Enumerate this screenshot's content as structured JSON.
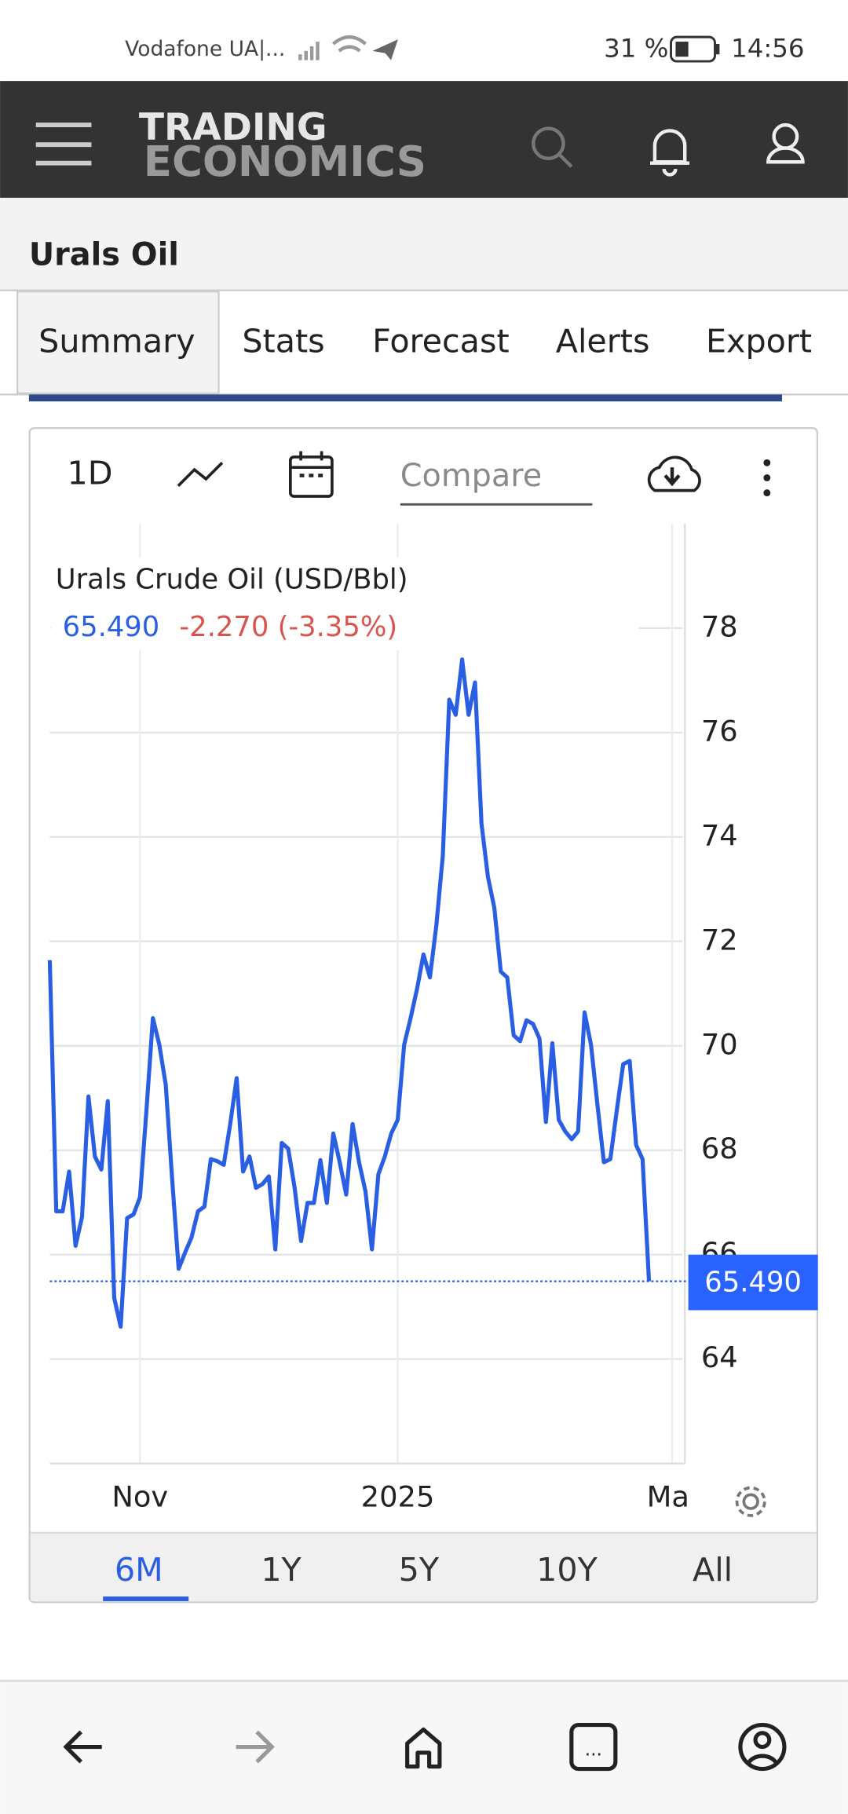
{
  "status_bar": {
    "carrier": "Vodafone UA|...",
    "battery": "31 %",
    "time": "14:56"
  },
  "header": {
    "logo_top": "TRADING",
    "logo_bottom": "ECONOMICS"
  },
  "page_title": "Urals Oil",
  "tabs": [
    "Summary",
    "Stats",
    "Forecast",
    "Alerts",
    "Export"
  ],
  "toolbar": {
    "interval": "1D",
    "compare": "Compare"
  },
  "chart_data": {
    "type": "line",
    "title": "Urals Crude Oil (USD/Bbl)",
    "price": "65.490",
    "change": "-2.270 (-3.35%)",
    "color": "#2b5fe3",
    "categories": [
      null,
      null,
      null,
      null,
      null,
      null,
      null,
      null,
      null,
      null,
      null,
      null,
      null,
      null,
      "Nov",
      null,
      null,
      null,
      null,
      null,
      null,
      null,
      null,
      null,
      null,
      null,
      null,
      null,
      null,
      null,
      null,
      null,
      null,
      null,
      null,
      null,
      null,
      null,
      null,
      null,
      null,
      null,
      null,
      null,
      null,
      null,
      null,
      null,
      null,
      null,
      null,
      null,
      null,
      null,
      "2025",
      null,
      null,
      null,
      null,
      null,
      null,
      null,
      null,
      null,
      null,
      null,
      null,
      null,
      null,
      null,
      null,
      null,
      null,
      null,
      null,
      null,
      null,
      null,
      null,
      null,
      null,
      null,
      null,
      null,
      null,
      null,
      null,
      null,
      null,
      null,
      null,
      null,
      null,
      "Ma"
    ],
    "values": [
      71.64,
      66.83,
      66.83,
      67.59,
      66.17,
      66.72,
      69.03,
      67.88,
      67.63,
      68.94,
      65.17,
      64.62,
      66.7,
      66.77,
      67.1,
      68.76,
      70.53,
      70.02,
      69.25,
      67.43,
      65.73,
      66.04,
      66.33,
      66.83,
      66.92,
      67.83,
      67.79,
      67.72,
      68.5,
      69.38,
      67.59,
      67.88,
      67.28,
      67.35,
      67.5,
      66.1,
      68.14,
      68.03,
      67.28,
      66.26,
      66.99,
      66.99,
      67.81,
      66.99,
      68.32,
      67.77,
      67.15,
      68.5,
      67.77,
      67.21,
      66.1,
      67.54,
      67.88,
      68.32,
      68.58,
      70.02,
      70.53,
      71.09,
      71.75,
      71.31,
      72.31,
      73.64,
      76.63,
      76.34,
      77.4,
      76.34,
      76.96,
      74.26,
      73.24,
      72.64,
      71.42,
      71.31,
      70.2,
      70.09,
      70.49,
      70.42,
      70.14,
      68.54,
      70.05,
      68.58,
      68.36,
      68.21,
      68.36,
      70.64,
      70.02,
      68.87,
      67.77,
      67.83,
      68.76,
      69.65,
      69.71,
      68.1,
      67.83,
      65.49
    ],
    "ylim": [
      62,
      80
    ],
    "yticks": [
      64,
      66,
      68,
      70,
      72,
      74,
      76,
      78
    ],
    "grid": true
  },
  "ranges": [
    "6M",
    "1Y",
    "5Y",
    "10Y",
    "All"
  ],
  "nav": {
    "tabs_icon": "..."
  }
}
